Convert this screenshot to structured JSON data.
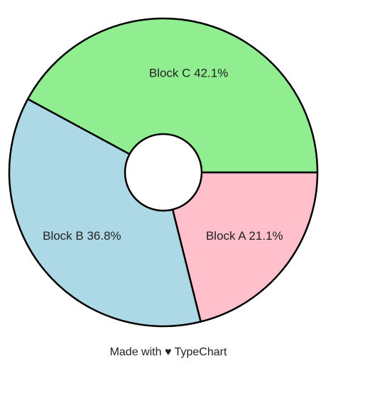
{
  "chart_data": {
    "type": "pie",
    "categories": [
      "Block A",
      "Block B",
      "Block C"
    ],
    "values": [
      21.1,
      36.8,
      42.1
    ],
    "labels": [
      "Block A  21.1%",
      "Block B  36.8%",
      "Block C  42.1%"
    ],
    "colors": [
      "#ffc0cb",
      "#add8e6",
      "#90ee90"
    ],
    "donut": true,
    "stroke_color": "#000000"
  },
  "footer": {
    "credit": "Made with ♥ TypeChart"
  }
}
